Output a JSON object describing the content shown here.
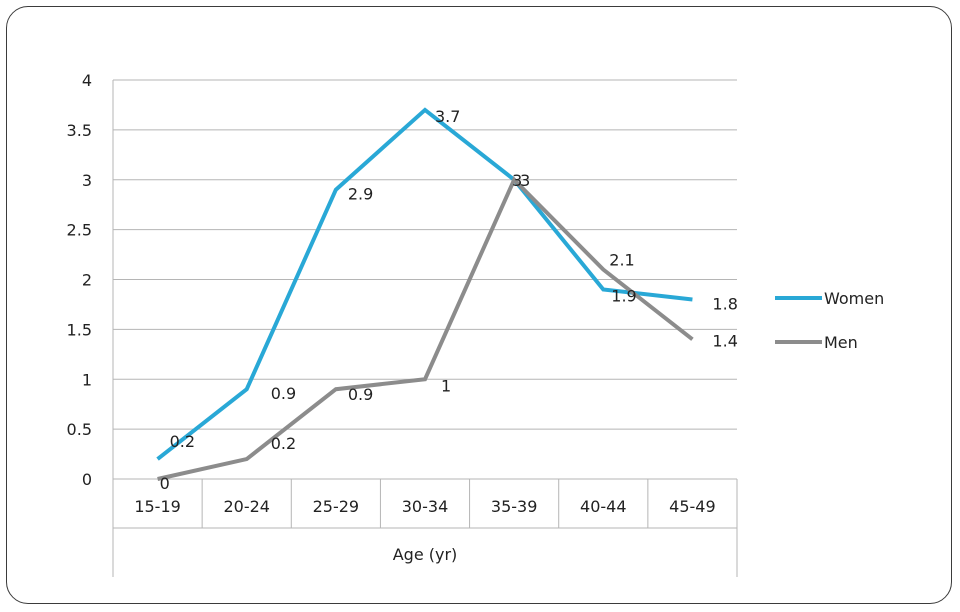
{
  "chart_data": {
    "type": "line",
    "categories": [
      "15-19",
      "20-24",
      "25-29",
      "30-34",
      "35-39",
      "40-44",
      "45-49"
    ],
    "series": [
      {
        "name": "Women",
        "values": [
          0.2,
          0.9,
          2.9,
          3.7,
          3.0,
          1.9,
          1.8
        ],
        "labels": [
          "0.2",
          "0.9",
          "2.9",
          "3.7",
          "3",
          "1.9",
          "1.8"
        ],
        "color": "#29a8d6"
      },
      {
        "name": "Men",
        "values": [
          0,
          0.2,
          0.9,
          1.0,
          3.0,
          2.1,
          1.4
        ],
        "labels": [
          "0",
          "0.2",
          "0.9",
          "1",
          "3",
          "2.1",
          "1.4"
        ],
        "color": "#8c8c8c"
      }
    ],
    "xlabel": "Age (yr)",
    "ylabel": "",
    "ylim": [
      0,
      4
    ],
    "yticks": [
      "0",
      "0.5",
      "1",
      "1.5",
      "2",
      "2.5",
      "3",
      "3.5",
      "4"
    ],
    "grid": true,
    "legend_position": "right"
  }
}
